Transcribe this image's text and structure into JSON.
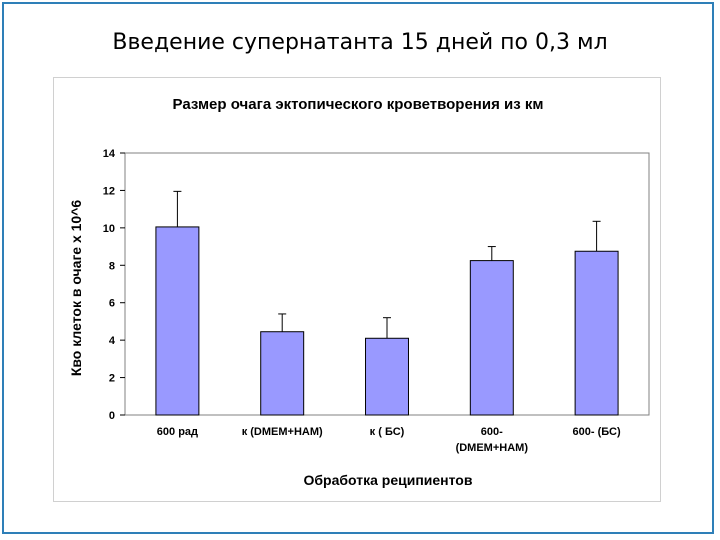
{
  "slide_title": "Введение супернатанта 15 дней по 0,3 мл",
  "colors": {
    "bar_fill": "#9999ff",
    "frame": "#2e7fb8"
  },
  "chart_data": {
    "type": "bar",
    "title": "Размер очага эктопического кроветворения из км",
    "xlabel": "Обработка реципиентов",
    "ylabel": "Кво клеток в очаге х 10^6",
    "categories": [
      [
        "600 рад"
      ],
      [
        "к (DMEM+HAM)"
      ],
      [
        "к ( БС)"
      ],
      [
        "600-",
        "(DMEM+HAM)"
      ],
      [
        "600- (БС)"
      ]
    ],
    "values": [
      10.05,
      4.45,
      4.1,
      8.25,
      8.75
    ],
    "errors": [
      1.9,
      0.95,
      1.1,
      0.75,
      1.6
    ],
    "ylim": [
      0,
      14
    ],
    "yticks": [
      "0",
      "2",
      "4",
      "6",
      "8",
      "10",
      "12",
      "14"
    ],
    "grid": false,
    "legend": "none"
  }
}
